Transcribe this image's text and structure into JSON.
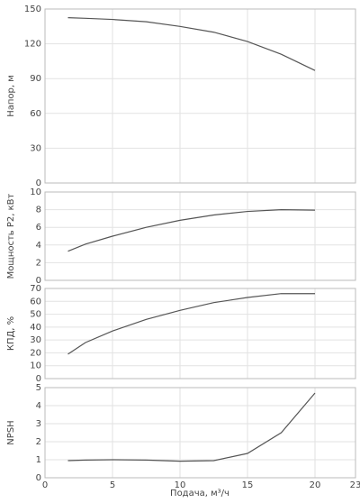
{
  "chart_data": {
    "type": "line",
    "color": "#555555",
    "grid": true,
    "x": [
      1.7,
      3,
      5,
      7.5,
      10,
      12.5,
      15,
      17.5,
      20
    ],
    "xlim": [
      0,
      23
    ],
    "xticks": [
      0,
      5,
      10,
      15,
      20,
      23
    ],
    "xlabel": "Подача, м³/ч",
    "panels": [
      {
        "ylabel": "Напор, м",
        "ylim": [
          0,
          150
        ],
        "yticks": [
          0,
          30,
          60,
          90,
          120,
          150
        ],
        "values": [
          142.5,
          142,
          141,
          139,
          135,
          130,
          122,
          111,
          97
        ]
      },
      {
        "ylabel": "Мощность P2, кВт",
        "ylim": [
          0,
          10
        ],
        "yticks": [
          0,
          2,
          4,
          6,
          8,
          10
        ],
        "values": [
          3.3,
          4.1,
          5.0,
          6.0,
          6.8,
          7.4,
          7.8,
          8.0,
          7.95
        ]
      },
      {
        "ylabel": "КПД, %",
        "ylim": [
          0,
          70
        ],
        "yticks": [
          0,
          10,
          20,
          30,
          40,
          50,
          60,
          70
        ],
        "values": [
          19,
          28,
          37,
          46,
          53,
          59,
          63,
          66,
          66
        ]
      },
      {
        "ylabel": "NPSH",
        "ylim": [
          0,
          5
        ],
        "yticks": [
          0,
          1,
          2,
          3,
          4,
          5
        ],
        "values": [
          0.95,
          0.98,
          1.0,
          0.98,
          0.92,
          0.95,
          1.35,
          2.5,
          4.7
        ]
      }
    ]
  }
}
